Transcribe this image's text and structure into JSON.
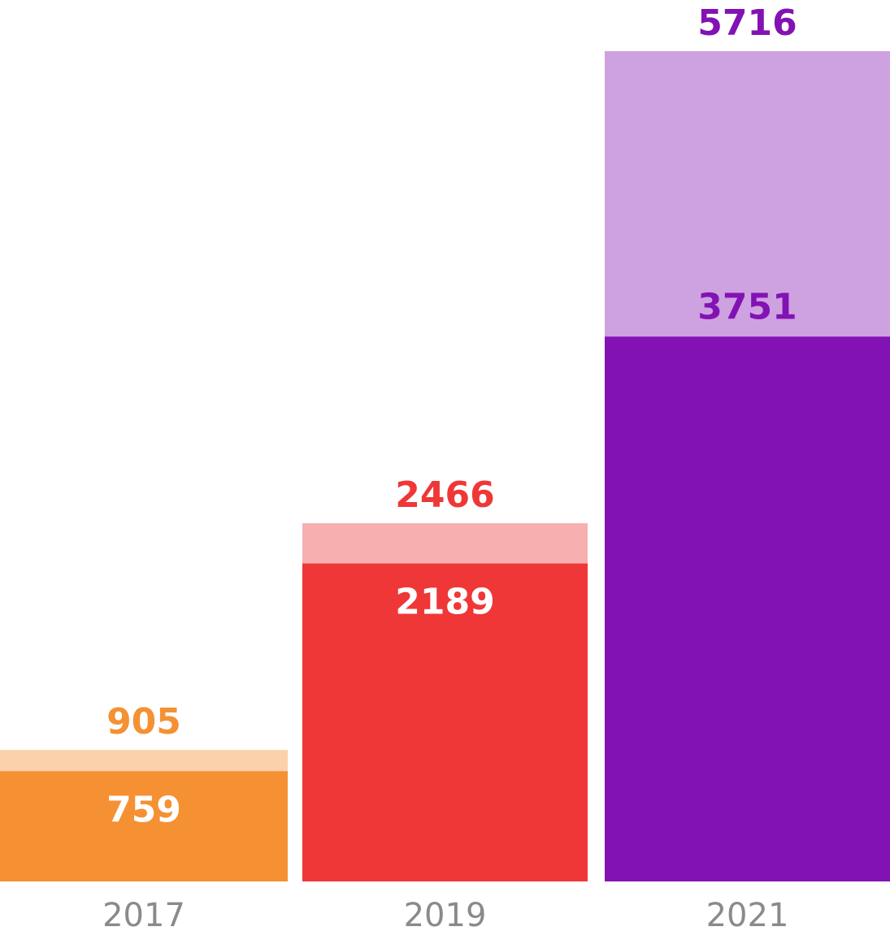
{
  "chart_data": {
    "type": "bar",
    "categories": [
      "2017",
      "2019",
      "2021"
    ],
    "series": [
      {
        "values": [
          759,
          2189,
          3751
        ]
      },
      {
        "values": [
          905,
          2466,
          5716
        ]
      }
    ],
    "bars": [
      {
        "category": "2017",
        "inner": 759,
        "total": 905,
        "inner_label": "759",
        "total_label": "905",
        "colors": {
          "inner": "#f59033",
          "outer": "#fbd1ab",
          "total_text": "#f59033",
          "inner_text": "#ffffff"
        }
      },
      {
        "category": "2019",
        "inner": 2189,
        "total": 2466,
        "inner_label": "2189",
        "total_label": "2466",
        "colors": {
          "inner": "#ef3737",
          "outer": "#f8afaf",
          "total_text": "#ef3737",
          "inner_text": "#ffffff"
        }
      },
      {
        "category": "2021",
        "inner": 3751,
        "total": 5716,
        "inner_label": "3751",
        "total_label": "5716",
        "colors": {
          "inner": "#8312b4",
          "outer": "#cea1e0",
          "total_text": "#8312b4",
          "inner_text": "#8312b4"
        }
      }
    ],
    "ylim": [
      0,
      5716
    ],
    "grid": false,
    "axes_visible": false
  },
  "axis_text_color": "#8a8a8a"
}
